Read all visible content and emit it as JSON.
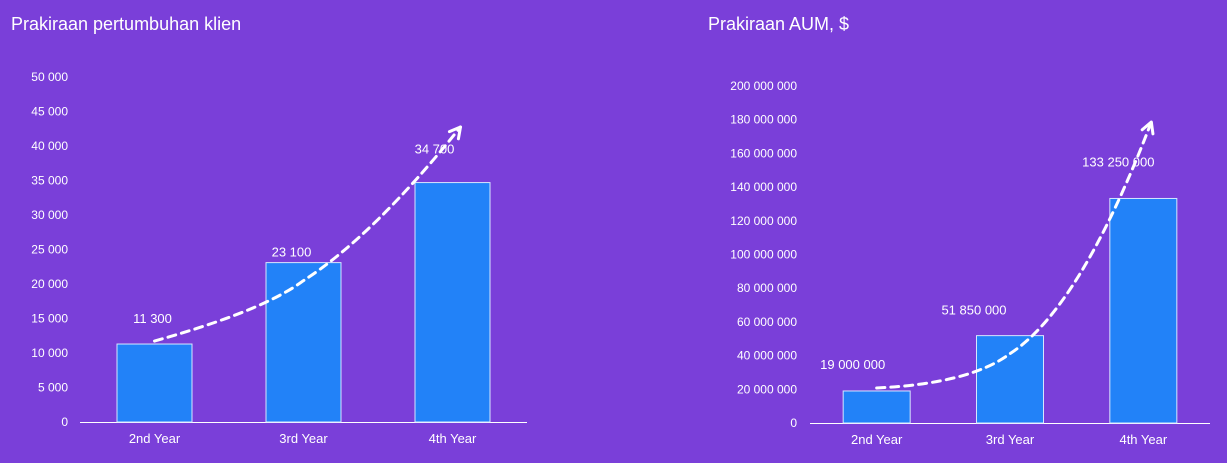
{
  "colors": {
    "background": "#7a3fd9",
    "bar_fill": "#2282f8",
    "bar_stroke": "#d6e6ff",
    "text": "#ffffff",
    "trend_line": "#ffffff"
  },
  "chart_data": [
    {
      "type": "bar",
      "title": "Prakiraan pertumbuhan klien",
      "categories": [
        "2nd Year",
        "3rd Year",
        "4th Year"
      ],
      "values": [
        11300,
        23100,
        34700
      ],
      "data_labels": [
        "11 300",
        "23 100",
        "34 700"
      ],
      "ylim": [
        0,
        50000
      ],
      "yticks": [
        0,
        5000,
        10000,
        15000,
        20000,
        25000,
        30000,
        35000,
        40000,
        45000,
        50000
      ],
      "ytick_labels": [
        "0",
        "5 000",
        "10 000",
        "15 000",
        "20 000",
        "25 000",
        "30 000",
        "35 000",
        "40 000",
        "45 000",
        "50 000"
      ],
      "grid": false,
      "legend": "none",
      "trend_arrow": "dashed curved arrow rising across bar tops"
    },
    {
      "type": "bar",
      "title": "Prakiraan AUM, $",
      "categories": [
        "2nd Year",
        "3rd Year",
        "4th Year"
      ],
      "values": [
        19000000,
        51850000,
        133250000
      ],
      "data_labels": [
        "19 000 000",
        "51 850 000",
        "133 250 000"
      ],
      "ylim": [
        0,
        200000000
      ],
      "yticks": [
        0,
        20000000,
        40000000,
        60000000,
        80000000,
        100000000,
        120000000,
        140000000,
        160000000,
        180000000,
        200000000
      ],
      "ytick_labels": [
        "0",
        "20 000 000",
        "40 000 000",
        "60 000 000",
        "80 000 000",
        "100 000 000",
        "120 000 000",
        "140 000 000",
        "160 000 000",
        "180 000 000",
        "200 000 000"
      ],
      "grid": false,
      "legend": "none",
      "trend_arrow": "dashed curved arrow rising across bar tops"
    }
  ]
}
